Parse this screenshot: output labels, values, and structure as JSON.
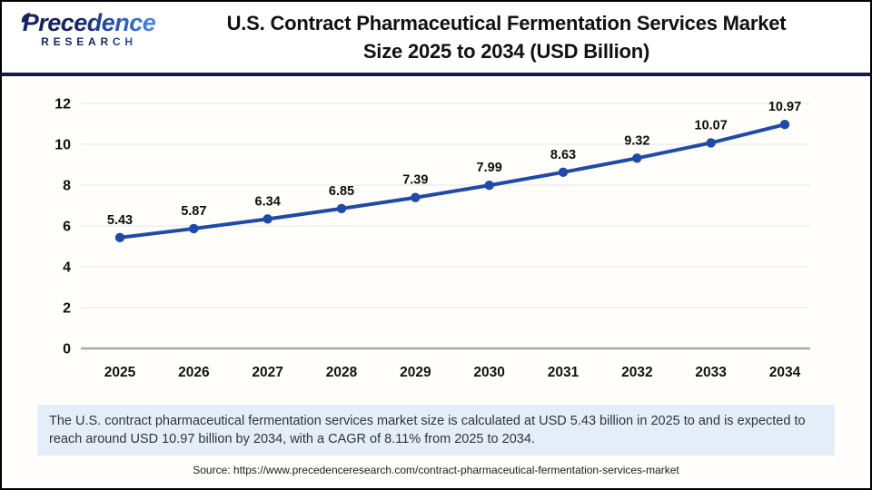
{
  "header": {
    "logo": {
      "brand": "Precedence",
      "sub": "RESEARCH"
    },
    "title_line1": "U.S. Contract Pharmaceutical Fermentation Services Market",
    "title_line2": "Size 2025 to 2034 (USD Billion)"
  },
  "chart_data": {
    "type": "line",
    "title": "U.S. Contract Pharmaceutical Fermentation Services Market Size 2025 to 2034 (USD Billion)",
    "categories": [
      "2025",
      "2026",
      "2027",
      "2028",
      "2029",
      "2030",
      "2031",
      "2032",
      "2033",
      "2034"
    ],
    "values": [
      5.43,
      5.87,
      6.34,
      6.85,
      7.39,
      7.99,
      8.63,
      9.32,
      10.07,
      10.97
    ],
    "xlabel": "",
    "ylabel": "",
    "ylim": [
      0,
      12
    ],
    "ytick_step": 2,
    "grid": true,
    "legend": "none",
    "line_color": "#1f4aa8",
    "marker_color": "#1f4aa8",
    "gridline_color": "#ececec",
    "zeroline_color": "#a9a9a9",
    "label_color": "#0d0d0d"
  },
  "summary": {
    "text": "The U.S. contract pharmaceutical fermentation services market size is calculated at USD 5.43 billion in 2025 to and is expected to reach around USD 10.97 billion by 2034, with a CAGR of 8.11% from 2025 to 2034."
  },
  "source": {
    "text": "Source: https://www.precedenceresearch.com/contract-pharmaceutical-fermentation-services-market"
  }
}
